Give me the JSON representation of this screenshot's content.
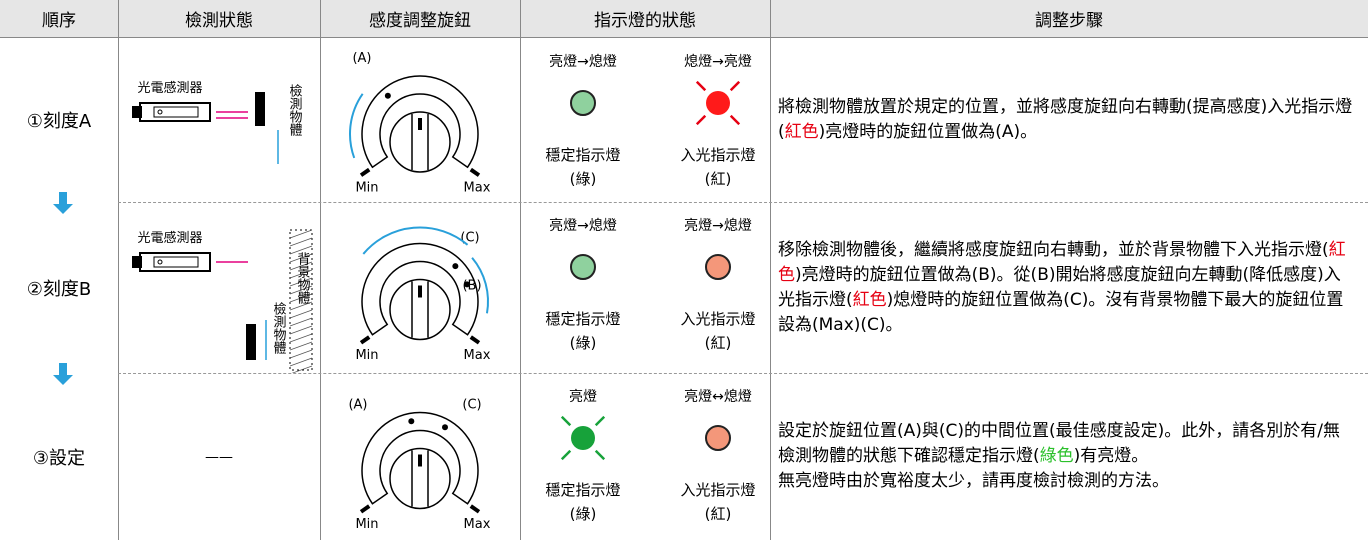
{
  "header": [
    "順序",
    "檢測狀態",
    "感度調整旋鈕",
    "指示燈的狀態",
    "調整步驟"
  ],
  "rows": [
    {
      "step": "①刻度A",
      "detection": {
        "sensor": "光電感測器",
        "object": "檢測物體"
      },
      "knob": {
        "labels": [
          "(A)"
        ],
        "min": "Min",
        "max": "Max"
      },
      "indicators": [
        {
          "heading": "亮燈→熄燈",
          "name": "穩定指示燈",
          "color_label": "(綠)"
        },
        {
          "heading": "熄燈→亮燈",
          "name": "入光指示燈",
          "color_label": "(紅)"
        }
      ],
      "instructions": [
        [
          {
            "text": "將檢測物體放置於規定的位置，並將感度旋鈕向右轉動(提高感度)入光指示燈("
          },
          {
            "text": "紅色",
            "color": "#e60012"
          },
          {
            "text": ")亮燈時的旋鈕位置做為(A)。"
          }
        ]
      ]
    },
    {
      "step": "②刻度B",
      "detection": {
        "sensor": "光電感測器",
        "object": "檢測物體",
        "background": "背景物體"
      },
      "knob": {
        "labels": [
          "(C)",
          "(B)"
        ],
        "min": "Min",
        "max": "Max"
      },
      "indicators": [
        {
          "heading": "亮燈→熄燈",
          "name": "穩定指示燈",
          "color_label": "(綠)"
        },
        {
          "heading": "亮燈→熄燈",
          "name": "入光指示燈",
          "color_label": "(紅)"
        }
      ],
      "instructions": [
        [
          {
            "text": "移除檢測物體後，繼續將感度旋鈕向右轉動，並於背景物體下入光指示燈("
          },
          {
            "text": "紅色",
            "color": "#e60012"
          },
          {
            "text": ")亮燈時的旋鈕位置做為(B)。從(B)開始將感度旋鈕向左轉動(降低感度)入光指示燈("
          },
          {
            "text": "紅色",
            "color": "#e60012"
          },
          {
            "text": ")熄燈時的旋鈕位置做為(C)。沒有背景物體下最大的旋鈕位置設為(Max)(C)。"
          }
        ]
      ]
    },
    {
      "step": "③設定",
      "detection": {
        "text": "——"
      },
      "knob": {
        "labels": [
          "(A)",
          "(C)"
        ],
        "min": "Min",
        "max": "Max"
      },
      "indicators": [
        {
          "heading": "亮燈",
          "name": "穩定指示燈",
          "color_label": "(綠)"
        },
        {
          "heading": "亮燈↔熄燈",
          "name": "入光指示燈",
          "color_label": "(紅)"
        }
      ],
      "instructions": [
        [
          {
            "text": "設定於旋鈕位置(A)與(C)的中間位置(最佳感度設定)。此外，請各別於有/無檢測物體的狀態下確認穩定指示燈("
          },
          {
            "text": "綠色",
            "color": "#2bc02b"
          },
          {
            "text": ")有亮燈。"
          }
        ],
        [
          {
            "text": "無亮燈時由於寬裕度太少，請再度檢討檢測的方法。"
          }
        ]
      ]
    }
  ]
}
